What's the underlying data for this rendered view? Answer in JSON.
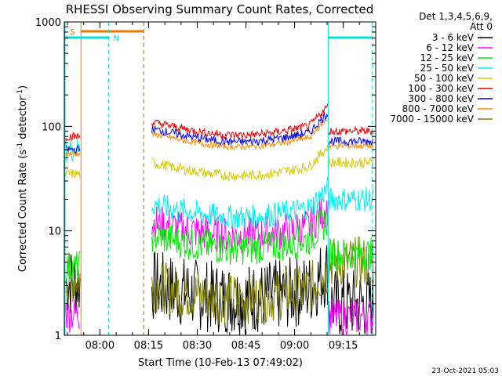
{
  "chart_data": {
    "type": "line",
    "title": "RHESSI Observing Summary Count Rates, Corrected",
    "xlabel": "Start Time (10-Feb-13 07:49:02)",
    "ylabel": "Corrected Count Rate (s⁻¹ detector⁻¹)",
    "ylabel_main": "Corrected Count Rate (s",
    "ylabel_mid": " detector",
    "ylabel_end": ")",
    "ylabel_sup": "-1",
    "y_scale": "log",
    "ylim": [
      1,
      1000
    ],
    "xlim": [
      "07:49:02",
      "09:25:00"
    ],
    "x_ticks": [
      "08:00",
      "08:15",
      "08:30",
      "08:45",
      "09:00",
      "09:15"
    ],
    "y_ticks": [
      "1",
      "10",
      "100",
      "1000"
    ],
    "legend_header": [
      "Det 1,3,4,5,6,9,",
      "Att 0"
    ],
    "legend_position": "right",
    "footer": "23-Oct-2021 05:03",
    "flag_labels": {
      "saa": "S",
      "night": "N"
    },
    "intervals": {
      "saa": {
        "start": "07:54:10",
        "end": "08:13:30",
        "color": "#f07800"
      },
      "night": [
        {
          "start": "07:49:02",
          "end": "08:02:40",
          "color": "#00e0e0"
        },
        {
          "start": "09:10:20",
          "end": "09:24:00",
          "color": "#00e0e0"
        }
      ]
    },
    "series": [
      {
        "name": "3 - 6 keV",
        "color": "#000000"
      },
      {
        "name": "6 - 12 keV",
        "color": "#ff00ff"
      },
      {
        "name": "12 - 25 keV",
        "color": "#00ee00"
      },
      {
        "name": "25 - 50 keV",
        "color": "#00eeee"
      },
      {
        "name": "50 - 100 keV",
        "color": "#d8c800"
      },
      {
        "name": "100 - 300 keV",
        "color": "#ee0000"
      },
      {
        "name": "300 - 800 keV",
        "color": "#0000ee"
      },
      {
        "name": "800 - 7000 keV",
        "color": "#ff8c00"
      },
      {
        "name": "7000 - 15000 keV",
        "color": "#808000"
      }
    ]
  }
}
